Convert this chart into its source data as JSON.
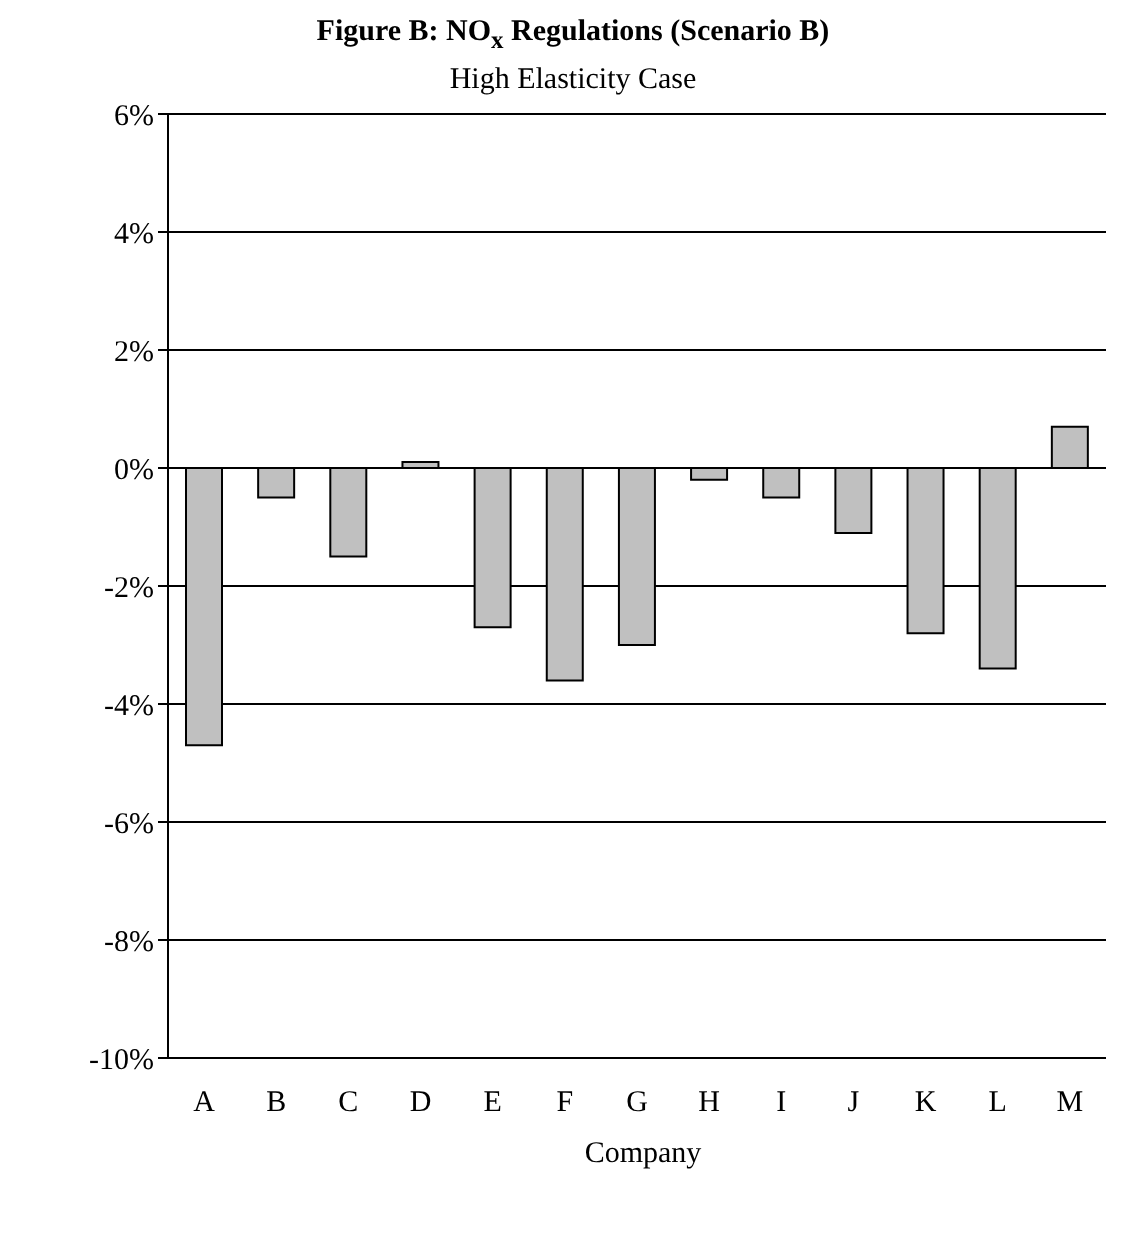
{
  "chart_data": {
    "type": "bar",
    "title": "Figure B: NO$_{x}$ Regulations (Scenario B)",
    "subtitle": "High Elasticity Case",
    "xlabel": "Company",
    "categories": [
      "A",
      "B",
      "C",
      "D",
      "E",
      "F",
      "G",
      "H",
      "I",
      "J",
      "K",
      "L",
      "M"
    ],
    "values": [
      -4.7,
      -0.5,
      -1.5,
      0.1,
      -2.7,
      -3.6,
      -3.0,
      -0.2,
      -0.5,
      -1.1,
      -2.8,
      -3.4,
      0.7
    ],
    "color": "#c0c0c0",
    "ylim": [
      -10,
      6
    ],
    "yticks": [
      {
        "value": -10,
        "label": "-10%"
      },
      {
        "value": -8,
        "label": "-8%"
      },
      {
        "value": -6,
        "label": "-6%"
      },
      {
        "value": -4,
        "label": "-4%"
      },
      {
        "value": -2,
        "label": "-2%"
      },
      {
        "value": 0,
        "label": "0%"
      },
      {
        "value": 2,
        "label": "2%"
      },
      {
        "value": 4,
        "label": "4%"
      },
      {
        "value": 6,
        "label": "6%"
      }
    ],
    "grid": "y"
  }
}
